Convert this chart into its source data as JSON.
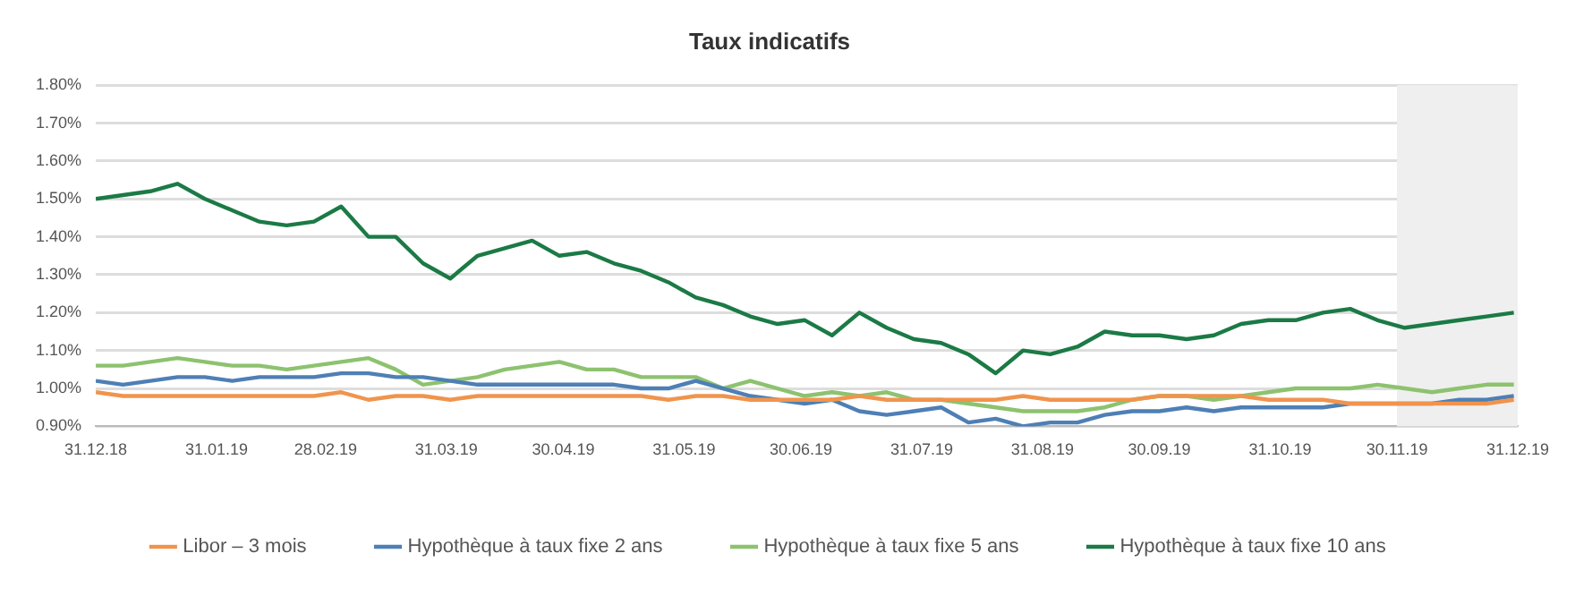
{
  "chart_data": {
    "type": "line",
    "title": "Taux indicatifs",
    "x": [
      "2018-12-31",
      "2019-01-07",
      "2019-01-14",
      "2019-01-21",
      "2019-01-28",
      "2019-02-04",
      "2019-02-11",
      "2019-02-18",
      "2019-02-25",
      "2019-03-04",
      "2019-03-11",
      "2019-03-18",
      "2019-03-25",
      "2019-04-01",
      "2019-04-08",
      "2019-04-15",
      "2019-04-22",
      "2019-04-29",
      "2019-05-06",
      "2019-05-13",
      "2019-05-20",
      "2019-05-27",
      "2019-06-03",
      "2019-06-10",
      "2019-06-17",
      "2019-06-24",
      "2019-07-01",
      "2019-07-08",
      "2019-07-15",
      "2019-07-22",
      "2019-07-29",
      "2019-08-05",
      "2019-08-12",
      "2019-08-19",
      "2019-08-26",
      "2019-09-02",
      "2019-09-09",
      "2019-09-16",
      "2019-09-23",
      "2019-09-30",
      "2019-10-07",
      "2019-10-14",
      "2019-10-21",
      "2019-10-28",
      "2019-11-04",
      "2019-11-11",
      "2019-11-18",
      "2019-11-25",
      "2019-12-02",
      "2019-12-09",
      "2019-12-16",
      "2019-12-23",
      "2019-12-30"
    ],
    "series": [
      {
        "name": "Libor – 3 mois",
        "color": "#f0944d",
        "values": [
          0.99,
          0.98,
          0.98,
          0.98,
          0.98,
          0.98,
          0.98,
          0.98,
          0.98,
          0.99,
          0.97,
          0.98,
          0.98,
          0.97,
          0.98,
          0.98,
          0.98,
          0.98,
          0.98,
          0.98,
          0.98,
          0.97,
          0.98,
          0.98,
          0.97,
          0.97,
          0.97,
          0.97,
          0.98,
          0.97,
          0.97,
          0.97,
          0.97,
          0.97,
          0.98,
          0.97,
          0.97,
          0.97,
          0.97,
          0.98,
          0.98,
          0.98,
          0.98,
          0.97,
          0.97,
          0.97,
          0.96,
          0.96,
          0.96,
          0.96,
          0.96,
          0.96,
          0.97
        ]
      },
      {
        "name": "Hypothèque à taux fixe 2 ans",
        "color": "#4e7fb5",
        "values": [
          1.02,
          1.01,
          1.02,
          1.03,
          1.03,
          1.02,
          1.03,
          1.03,
          1.03,
          1.04,
          1.04,
          1.03,
          1.03,
          1.02,
          1.01,
          1.01,
          1.01,
          1.01,
          1.01,
          1.01,
          1.0,
          1.0,
          1.02,
          1.0,
          0.98,
          0.97,
          0.96,
          0.97,
          0.94,
          0.93,
          0.94,
          0.95,
          0.91,
          0.92,
          0.9,
          0.91,
          0.91,
          0.93,
          0.94,
          0.94,
          0.95,
          0.94,
          0.95,
          0.95,
          0.95,
          0.95,
          0.96,
          0.96,
          0.96,
          0.96,
          0.97,
          0.97,
          0.98
        ]
      },
      {
        "name": "Hypothèque à taux fixe 5 ans",
        "color": "#8dc26f",
        "values": [
          1.06,
          1.06,
          1.07,
          1.08,
          1.07,
          1.06,
          1.06,
          1.05,
          1.06,
          1.07,
          1.08,
          1.05,
          1.01,
          1.02,
          1.03,
          1.05,
          1.06,
          1.07,
          1.05,
          1.05,
          1.03,
          1.03,
          1.03,
          1.0,
          1.02,
          1.0,
          0.98,
          0.99,
          0.98,
          0.99,
          0.97,
          0.97,
          0.96,
          0.95,
          0.94,
          0.94,
          0.94,
          0.95,
          0.97,
          0.98,
          0.98,
          0.97,
          0.98,
          0.99,
          1.0,
          1.0,
          1.0,
          1.01,
          1.0,
          0.99,
          1.0,
          1.01,
          1.01
        ]
      },
      {
        "name": "Hypothèque à taux fixe 10 ans",
        "color": "#1b7a45",
        "values": [
          1.5,
          1.51,
          1.52,
          1.54,
          1.5,
          1.47,
          1.44,
          1.43,
          1.44,
          1.48,
          1.4,
          1.4,
          1.33,
          1.29,
          1.35,
          1.37,
          1.39,
          1.35,
          1.36,
          1.33,
          1.31,
          1.28,
          1.24,
          1.22,
          1.19,
          1.17,
          1.18,
          1.14,
          1.2,
          1.16,
          1.13,
          1.12,
          1.09,
          1.04,
          1.1,
          1.09,
          1.11,
          1.15,
          1.14,
          1.14,
          1.13,
          1.14,
          1.17,
          1.18,
          1.18,
          1.2,
          1.21,
          1.18,
          1.16,
          1.17,
          1.18,
          1.19,
          1.2
        ]
      }
    ],
    "xlim": [
      "2018-12-31",
      "2019-12-31"
    ],
    "xticks": [
      {
        "value": "2018-12-31",
        "label": "31.12.18"
      },
      {
        "value": "2019-01-31",
        "label": "31.01.19"
      },
      {
        "value": "2019-02-28",
        "label": "28.02.19"
      },
      {
        "value": "2019-03-31",
        "label": "31.03.19"
      },
      {
        "value": "2019-04-30",
        "label": "30.04.19"
      },
      {
        "value": "2019-05-31",
        "label": "31.05.19"
      },
      {
        "value": "2019-06-30",
        "label": "30.06.19"
      },
      {
        "value": "2019-07-31",
        "label": "31.07.19"
      },
      {
        "value": "2019-08-31",
        "label": "31.08.19"
      },
      {
        "value": "2019-09-30",
        "label": "30.09.19"
      },
      {
        "value": "2019-10-31",
        "label": "31.10.19"
      },
      {
        "value": "2019-11-30",
        "label": "30.11.19"
      },
      {
        "value": "2019-12-31",
        "label": "31.12.19"
      }
    ],
    "ylim": [
      0.9,
      1.8
    ],
    "yticks": [
      {
        "value": 0.9,
        "label": "0.90%"
      },
      {
        "value": 1.0,
        "label": "1.00%"
      },
      {
        "value": 1.1,
        "label": "1.10%"
      },
      {
        "value": 1.2,
        "label": "1.20%"
      },
      {
        "value": 1.3,
        "label": "1.30%"
      },
      {
        "value": 1.4,
        "label": "1.40%"
      },
      {
        "value": 1.5,
        "label": "1.50%"
      },
      {
        "value": 1.6,
        "label": "1.60%"
      },
      {
        "value": 1.7,
        "label": "1.70%"
      },
      {
        "value": 1.8,
        "label": "1.80%"
      }
    ],
    "bands": [
      {
        "axis": "x",
        "from": "2019-11-30",
        "to": "2019-12-31",
        "color": "#efefef"
      }
    ],
    "grid": "y",
    "legend": "bottom",
    "marker": "none",
    "line_style": "solid"
  }
}
